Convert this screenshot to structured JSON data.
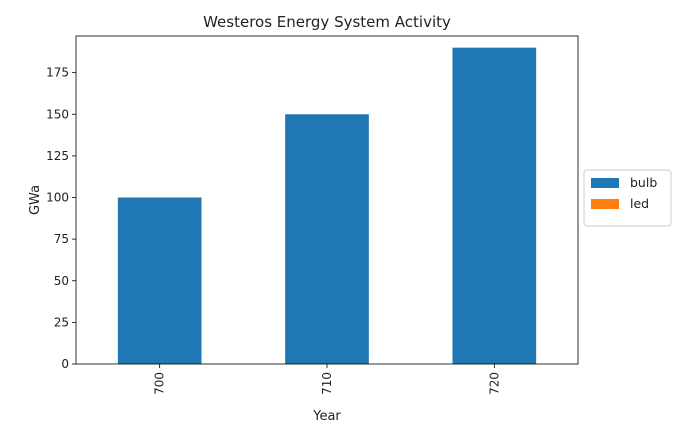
{
  "chart_data": {
    "type": "bar",
    "stacked": true,
    "title": "Westeros Energy System Activity",
    "xlabel": "Year",
    "ylabel": "GWa",
    "categories": [
      "700",
      "710",
      "720"
    ],
    "series": [
      {
        "name": "bulb",
        "values": [
          100,
          150,
          190
        ],
        "color": "#1f77b4"
      },
      {
        "name": "led",
        "values": [
          0,
          0,
          0
        ],
        "color": "#ff7f0e"
      }
    ],
    "ylim": [
      0,
      197
    ],
    "yticks": [
      "0",
      "25",
      "50",
      "75",
      "100",
      "125",
      "150",
      "175"
    ],
    "legend_placement": "right",
    "grid": false
  }
}
